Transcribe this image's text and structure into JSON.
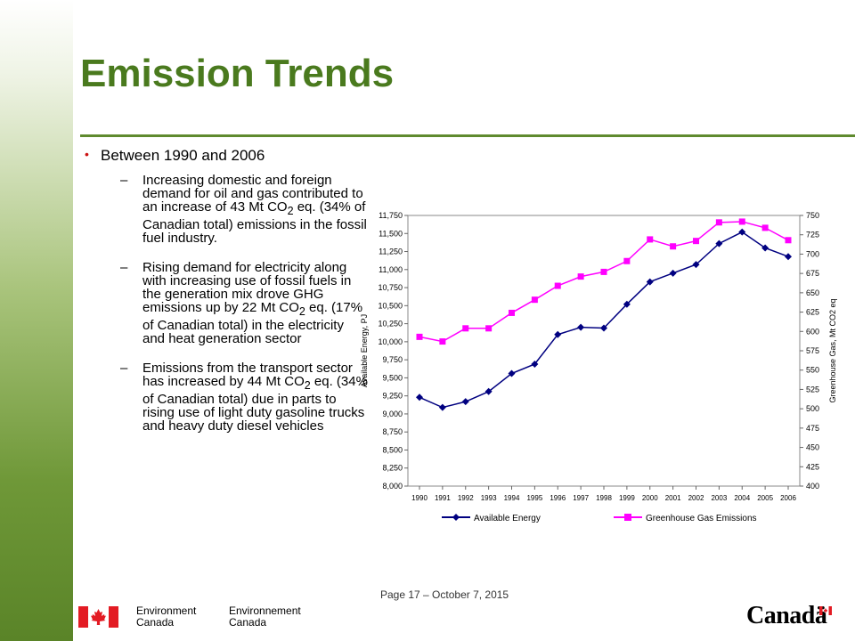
{
  "slide": {
    "title": "Emission Trends",
    "bullet": "Between 1990 and 2006",
    "points": [
      {
        "pre": "Increasing domestic and foreign demand for oil and gas contributed to an increase of 43 Mt CO",
        "sub": "2",
        "post": " eq. (34% of Canadian total) emissions in the fossil fuel industry."
      },
      {
        "pre": "Rising demand for electricity along with increasing use of fossil fuels in the generation mix drove GHG emissions up by 22 Mt CO",
        "sub": "2",
        "post": " eq. (17% of Canadian total) in the electricity and heat generation sector"
      },
      {
        "pre": "Emissions from the transport sector has increased by 44 Mt CO",
        "sub": "2",
        "post": " eq. (34% of Canadian total) due in parts to rising use of light duty gasoline trucks and heavy duty diesel vehicles"
      }
    ],
    "dash": "–",
    "footer": "Page 17 – October 7, 2015",
    "org_en": [
      "Environment",
      "Canada"
    ],
    "org_fr": [
      "Environnement",
      "Canada"
    ],
    "wordmark": "Canadä"
  },
  "colors": {
    "title": "#4a7a1e",
    "energy": "#000080",
    "ghg": "#ff00ff",
    "flag": "#e31b23"
  },
  "chart_data": {
    "type": "line",
    "x": [
      1990,
      1991,
      1992,
      1993,
      1994,
      1995,
      1996,
      1997,
      1998,
      1999,
      2000,
      2001,
      2002,
      2003,
      2004,
      2005,
      2006
    ],
    "series": [
      {
        "name": "Available Energy",
        "axis": "left",
        "marker": "diamond",
        "values": [
          9230,
          9090,
          9170,
          9310,
          9560,
          9690,
          10100,
          10200,
          10190,
          10520,
          10830,
          10950,
          11070,
          11360,
          11520,
          11300,
          11180
        ]
      },
      {
        "name": "Greenhouse Gas Emissions",
        "axis": "right",
        "marker": "square",
        "values": [
          593,
          587,
          604,
          604,
          624,
          641,
          659,
          671,
          677,
          691,
          719,
          710,
          717,
          741,
          742,
          734,
          718
        ]
      }
    ],
    "ylabel": "Available Energy, PJ",
    "y2label": "Greenhouse Gas, Mt CO2 eq",
    "ylim": [
      8000,
      11750
    ],
    "y2lim": [
      400,
      750
    ],
    "yticks": [
      "8,000",
      "8,250",
      "8,500",
      "8,750",
      "9,000",
      "9,250",
      "9,500",
      "9,750",
      "10,000",
      "10,250",
      "10,500",
      "10,750",
      "11,000",
      "11,250",
      "11,500",
      "11,750"
    ],
    "y2ticks": [
      "400",
      "425",
      "450",
      "475",
      "500",
      "525",
      "550",
      "575",
      "600",
      "625",
      "650",
      "675",
      "700",
      "725",
      "750"
    ],
    "grid": false,
    "legend": "bottom"
  }
}
